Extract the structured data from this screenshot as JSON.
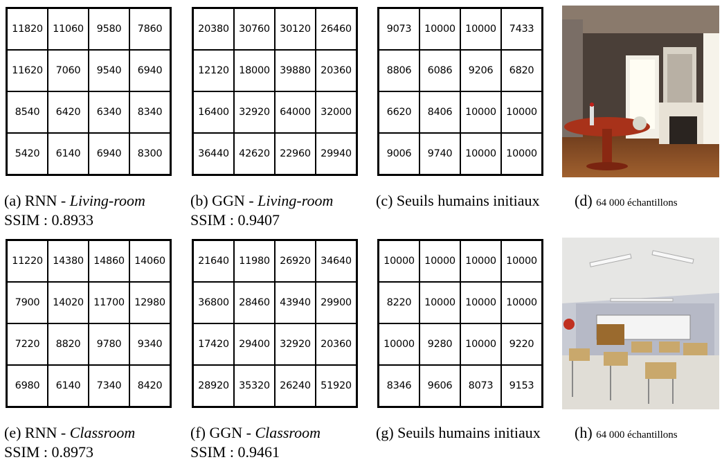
{
  "panels": [
    {
      "tag": "(a)",
      "method": "RNN -",
      "scene": "Living-room",
      "ssim": "SSIM : 0.8933",
      "grid": [
        [
          11820,
          11060,
          9580,
          7860
        ],
        [
          11620,
          7060,
          9540,
          6940
        ],
        [
          8540,
          6420,
          6340,
          8340
        ],
        [
          5420,
          6140,
          6940,
          8300
        ]
      ]
    },
    {
      "tag": "(b)",
      "method": "GGN -",
      "scene": "Living-room",
      "ssim": "SSIM : 0.9407",
      "grid": [
        [
          20380,
          30760,
          30120,
          26460
        ],
        [
          12120,
          18000,
          39880,
          20360
        ],
        [
          16400,
          32920,
          64000,
          32000
        ],
        [
          36440,
          42620,
          22960,
          29940
        ]
      ]
    },
    {
      "tag": "(c)",
      "caption": "Seuils humains initiaux",
      "grid": [
        [
          9073,
          10000,
          10000,
          7433
        ],
        [
          8806,
          6086,
          9206,
          6820
        ],
        [
          6620,
          8406,
          10000,
          10000
        ],
        [
          9006,
          9740,
          10000,
          10000
        ]
      ]
    },
    {
      "tag": "(e)",
      "method": "RNN -",
      "scene": "Classroom",
      "ssim": "SSIM : 0.8973",
      "grid": [
        [
          11220,
          14380,
          14860,
          14060
        ],
        [
          7900,
          14020,
          11700,
          12980
        ],
        [
          7220,
          8820,
          9780,
          9340
        ],
        [
          6980,
          6140,
          7340,
          8420
        ]
      ]
    },
    {
      "tag": "(f)",
      "method": "GGN -",
      "scene": "Classroom",
      "ssim": "SSIM : 0.9461",
      "grid": [
        [
          21640,
          11980,
          26920,
          34640
        ],
        [
          36800,
          28460,
          43940,
          29900
        ],
        [
          17420,
          29400,
          32920,
          20360
        ],
        [
          28920,
          35320,
          26240,
          51920
        ]
      ]
    },
    {
      "tag": "(g)",
      "caption": "Seuils humains initiaux",
      "grid": [
        [
          10000,
          10000,
          10000,
          10000
        ],
        [
          8220,
          10000,
          10000,
          10000
        ],
        [
          10000,
          9280,
          10000,
          9220
        ],
        [
          8346,
          9606,
          8073,
          9153
        ]
      ]
    }
  ],
  "images": [
    {
      "tag": "(d)",
      "text": "64 000 échantillons"
    },
    {
      "tag": "(h)",
      "text": "64 000 échantillons"
    }
  ]
}
